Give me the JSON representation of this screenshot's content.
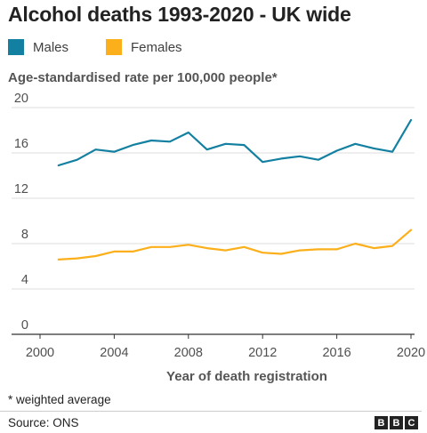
{
  "colors": {
    "males": "#1380a1",
    "females": "#fbaf1a",
    "grid": "#dddddd",
    "axis": "#333333"
  },
  "logo": {
    "letters": [
      "B",
      "B",
      "C"
    ]
  },
  "footnote": "* weighted average",
  "source": "Source: ONS",
  "chart_data": {
    "type": "line",
    "title": "Alcohol deaths 1993-2020 - UK wide",
    "ylabel": "Age-standardised rate per 100,000 people*",
    "xlabel": "Year of death registration",
    "xlim": [
      2000,
      2020
    ],
    "ylim": [
      0,
      20
    ],
    "xticks": [
      2000,
      2004,
      2008,
      2012,
      2016,
      2020
    ],
    "yticks": [
      0,
      4,
      8,
      12,
      16,
      20
    ],
    "grid": true,
    "legend_position": "top-left",
    "x": [
      2001,
      2002,
      2003,
      2004,
      2005,
      2006,
      2007,
      2008,
      2009,
      2010,
      2011,
      2012,
      2013,
      2014,
      2015,
      2016,
      2017,
      2018,
      2019,
      2020
    ],
    "series": [
      {
        "name": "Males",
        "values": [
          14.9,
          15.4,
          16.3,
          16.1,
          16.7,
          17.1,
          17.0,
          17.8,
          16.3,
          16.8,
          16.7,
          15.2,
          15.5,
          15.7,
          15.4,
          16.2,
          16.8,
          16.4,
          16.1,
          18.9
        ]
      },
      {
        "name": "Females",
        "values": [
          6.6,
          6.7,
          6.9,
          7.3,
          7.3,
          7.7,
          7.7,
          7.9,
          7.6,
          7.4,
          7.7,
          7.2,
          7.1,
          7.4,
          7.5,
          7.5,
          8.0,
          7.6,
          7.8,
          9.2
        ]
      }
    ]
  }
}
